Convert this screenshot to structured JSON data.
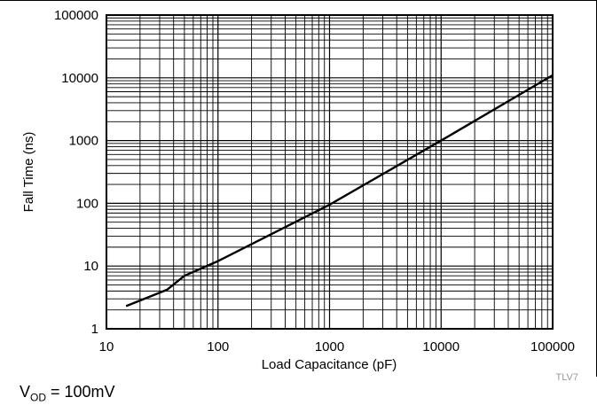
{
  "chart_data": {
    "type": "line",
    "title": "",
    "xlabel": "Load Capacitance (pF)",
    "ylabel": "Fall Time (ns)",
    "x_scale": "log",
    "y_scale": "log",
    "xlim": [
      10,
      100000
    ],
    "ylim": [
      1,
      100000
    ],
    "grid": true,
    "x_ticks": [
      "10",
      "100",
      "1000",
      "10000",
      "100000"
    ],
    "y_ticks": [
      "1",
      "10",
      "100",
      "1000",
      "10000",
      "100000"
    ],
    "series": [
      {
        "x": [
          15,
          35,
          50,
          100,
          1000,
          10000,
          100000
        ],
        "y": [
          2.3,
          4.2,
          7,
          12,
          95,
          1000,
          11000
        ]
      }
    ]
  },
  "figure_id": "TLV7",
  "condition": {
    "symbol": "V",
    "subscript": "OD",
    "rest": " = 100mV"
  }
}
